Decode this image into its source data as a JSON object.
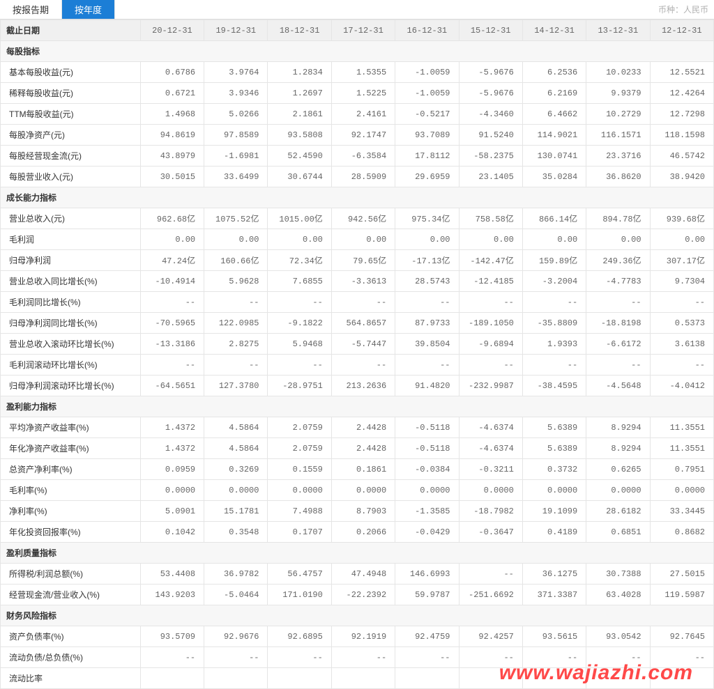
{
  "tabs": {
    "by_report": "按报告期",
    "by_year": "按年度"
  },
  "currency_label": "币种：人民币",
  "header": {
    "label": "截止日期",
    "dates": [
      "20-12-31",
      "19-12-31",
      "18-12-31",
      "17-12-31",
      "16-12-31",
      "15-12-31",
      "14-12-31",
      "13-12-31",
      "12-12-31"
    ]
  },
  "sections": [
    {
      "title": "每股指标",
      "rows": [
        {
          "label": "基本每股收益(元)",
          "vals": [
            "0.6786",
            "3.9764",
            "1.2834",
            "1.5355",
            "-1.0059",
            "-5.9676",
            "6.2536",
            "10.0233",
            "12.5521"
          ]
        },
        {
          "label": "稀释每股收益(元)",
          "vals": [
            "0.6721",
            "3.9346",
            "1.2697",
            "1.5225",
            "-1.0059",
            "-5.9676",
            "6.2169",
            "9.9379",
            "12.4264"
          ]
        },
        {
          "label": "TTM每股收益(元)",
          "vals": [
            "1.4968",
            "5.0266",
            "2.1861",
            "2.4161",
            "-0.5217",
            "-4.3460",
            "6.4662",
            "10.2729",
            "12.7298"
          ]
        },
        {
          "label": "每股净资产(元)",
          "vals": [
            "94.8619",
            "97.8589",
            "93.5808",
            "92.1747",
            "93.7089",
            "91.5240",
            "114.9021",
            "116.1571",
            "118.1598"
          ]
        },
        {
          "label": "每股经营现金流(元)",
          "vals": [
            "43.8979",
            "-1.6981",
            "52.4590",
            "-6.3584",
            "17.8112",
            "-58.2375",
            "130.0741",
            "23.3716",
            "46.5742"
          ]
        },
        {
          "label": "每股营业收入(元)",
          "vals": [
            "30.5015",
            "33.6499",
            "30.6744",
            "28.5909",
            "29.6959",
            "23.1405",
            "35.0284",
            "36.8620",
            "38.9420"
          ]
        }
      ]
    },
    {
      "title": "成长能力指标",
      "rows": [
        {
          "label": "营业总收入(元)",
          "vals": [
            "962.68亿",
            "1075.52亿",
            "1015.00亿",
            "942.56亿",
            "975.34亿",
            "758.58亿",
            "866.14亿",
            "894.78亿",
            "939.68亿"
          ]
        },
        {
          "label": "毛利润",
          "vals": [
            "0.00",
            "0.00",
            "0.00",
            "0.00",
            "0.00",
            "0.00",
            "0.00",
            "0.00",
            "0.00"
          ]
        },
        {
          "label": "归母净利润",
          "vals": [
            "47.24亿",
            "160.66亿",
            "72.34亿",
            "79.65亿",
            "-17.13亿",
            "-142.47亿",
            "159.89亿",
            "249.36亿",
            "307.17亿"
          ]
        },
        {
          "label": "营业总收入同比增长(%)",
          "vals": [
            "-10.4914",
            "5.9628",
            "7.6855",
            "-3.3613",
            "28.5743",
            "-12.4185",
            "-3.2004",
            "-4.7783",
            "9.7304"
          ]
        },
        {
          "label": "毛利润同比增长(%)",
          "vals": [
            "--",
            "--",
            "--",
            "--",
            "--",
            "--",
            "--",
            "--",
            "--"
          ]
        },
        {
          "label": "归母净利润同比增长(%)",
          "vals": [
            "-70.5965",
            "122.0985",
            "-9.1822",
            "564.8657",
            "87.9733",
            "-189.1050",
            "-35.8809",
            "-18.8198",
            "0.5373"
          ]
        },
        {
          "label": "营业总收入滚动环比增长(%)",
          "vals": [
            "-13.3186",
            "2.8275",
            "5.9468",
            "-5.7447",
            "39.8504",
            "-9.6894",
            "1.9393",
            "-6.6172",
            "3.6138"
          ]
        },
        {
          "label": "毛利润滚动环比增长(%)",
          "vals": [
            "--",
            "--",
            "--",
            "--",
            "--",
            "--",
            "--",
            "--",
            "--"
          ]
        },
        {
          "label": "归母净利润滚动环比增长(%)",
          "vals": [
            "-64.5651",
            "127.3780",
            "-28.9751",
            "213.2636",
            "91.4820",
            "-232.9987",
            "-38.4595",
            "-4.5648",
            "-4.0412"
          ]
        }
      ]
    },
    {
      "title": "盈利能力指标",
      "rows": [
        {
          "label": "平均净资产收益率(%)",
          "vals": [
            "1.4372",
            "4.5864",
            "2.0759",
            "2.4428",
            "-0.5118",
            "-4.6374",
            "5.6389",
            "8.9294",
            "11.3551"
          ]
        },
        {
          "label": "年化净资产收益率(%)",
          "vals": [
            "1.4372",
            "4.5864",
            "2.0759",
            "2.4428",
            "-0.5118",
            "-4.6374",
            "5.6389",
            "8.9294",
            "11.3551"
          ]
        },
        {
          "label": "总资产净利率(%)",
          "vals": [
            "0.0959",
            "0.3269",
            "0.1559",
            "0.1861",
            "-0.0384",
            "-0.3211",
            "0.3732",
            "0.6265",
            "0.7951"
          ]
        },
        {
          "label": "毛利率(%)",
          "vals": [
            "0.0000",
            "0.0000",
            "0.0000",
            "0.0000",
            "0.0000",
            "0.0000",
            "0.0000",
            "0.0000",
            "0.0000"
          ]
        },
        {
          "label": "净利率(%)",
          "vals": [
            "5.0901",
            "15.1781",
            "7.4988",
            "8.7903",
            "-1.3585",
            "-18.7982",
            "19.1099",
            "28.6182",
            "33.3445"
          ]
        },
        {
          "label": "年化投资回报率(%)",
          "vals": [
            "0.1042",
            "0.3548",
            "0.1707",
            "0.2066",
            "-0.0429",
            "-0.3647",
            "0.4189",
            "0.6851",
            "0.8682"
          ]
        }
      ]
    },
    {
      "title": "盈利质量指标",
      "rows": [
        {
          "label": "所得税/利润总额(%)",
          "vals": [
            "53.4408",
            "36.9782",
            "56.4757",
            "47.4948",
            "146.6993",
            "--",
            "36.1275",
            "30.7388",
            "27.5015"
          ]
        },
        {
          "label": "经营现金流/营业收入(%)",
          "vals": [
            "143.9203",
            "-5.0464",
            "171.0190",
            "-22.2392",
            "59.9787",
            "-251.6692",
            "371.3387",
            "63.4028",
            "119.5987"
          ]
        }
      ]
    },
    {
      "title": "财务风险指标",
      "rows": [
        {
          "label": "资产负债率(%)",
          "vals": [
            "93.5709",
            "92.9676",
            "92.6895",
            "92.1919",
            "92.4759",
            "92.4257",
            "93.5615",
            "93.0542",
            "92.7645"
          ]
        },
        {
          "label": "流动负债/总负债(%)",
          "vals": [
            "--",
            "--",
            "--",
            "--",
            "--",
            "--",
            "--",
            "--",
            "--"
          ]
        },
        {
          "label": "流动比率",
          "vals": [
            "",
            "",
            "",
            "",
            "",
            "",
            "",
            "",
            ""
          ]
        }
      ]
    }
  ],
  "watermark": "www.wajiazhi.com",
  "colors": {
    "tab_active_bg": "#1c7ed6",
    "tab_active_fg": "#ffffff",
    "border": "#e5e5e5",
    "header_bg": "#f0f0f0",
    "section_bg": "#f7f7f7",
    "text": "#333333",
    "muted": "#666666",
    "watermark": "#ff2a2a"
  }
}
